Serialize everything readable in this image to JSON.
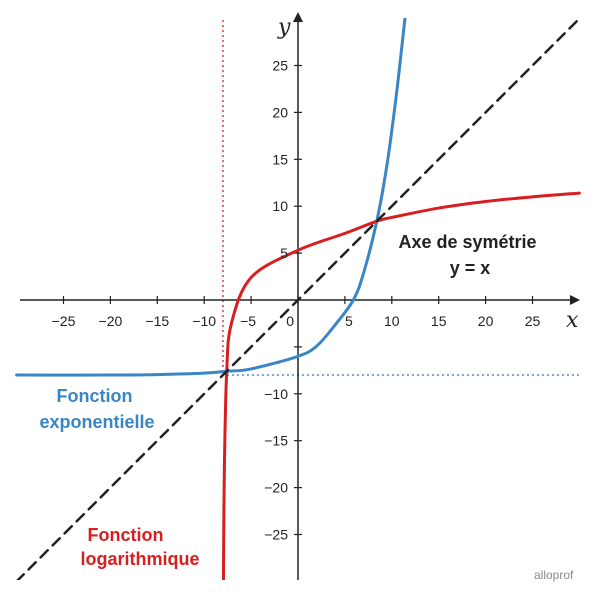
{
  "chart_data": {
    "type": "line",
    "title": "",
    "xlabel": "x",
    "ylabel": "y",
    "xlim": [
      -30,
      30
    ],
    "ylim": [
      -30,
      30
    ],
    "x_ticks": [
      "−25",
      "−20",
      "−15",
      "−10",
      "−5",
      "0",
      "5",
      "10",
      "15",
      "20",
      "25"
    ],
    "y_ticks": [
      "25",
      "20",
      "15",
      "10",
      "5",
      "−10",
      "−15",
      "−20",
      "−25"
    ],
    "grid": false,
    "series": [
      {
        "name": "Fonction exponentielle",
        "color": "#3a85c6",
        "points": [
          [
            -30,
            -8.0
          ],
          [
            -20,
            -8.0
          ],
          [
            -15,
            -7.95
          ],
          [
            -10,
            -7.8
          ],
          [
            -7.6,
            -7.6
          ],
          [
            -5,
            -7.35
          ],
          [
            0,
            -6.0
          ],
          [
            2,
            -4.9
          ],
          [
            4,
            -2.6
          ],
          [
            5.9,
            0
          ],
          [
            7,
            2.9
          ],
          [
            8.4,
            8.4
          ],
          [
            9.5,
            14.5
          ],
          [
            10.5,
            22.0
          ],
          [
            11.4,
            30
          ]
        ]
      },
      {
        "name": "Fonction logarithmique",
        "color": "#d81e1e",
        "points": [
          [
            -7.95,
            -30
          ],
          [
            -7.85,
            -18
          ],
          [
            -7.6,
            -7.6
          ],
          [
            -7.1,
            -2.5
          ],
          [
            -5,
            2.4
          ],
          [
            0,
            5.3
          ],
          [
            5,
            7.1
          ],
          [
            8.4,
            8.4
          ],
          [
            10,
            8.8
          ],
          [
            15,
            9.8
          ],
          [
            20,
            10.5
          ],
          [
            25,
            11.0
          ],
          [
            30,
            11.4
          ]
        ]
      },
      {
        "name": "Axe de symétrie",
        "color": "#222222",
        "points": [
          [
            -30,
            -30
          ],
          [
            30,
            30
          ]
        ]
      }
    ],
    "asymptotes": [
      {
        "orientation": "horizontal",
        "value": -8,
        "color": "#3a85c6"
      },
      {
        "orientation": "vertical",
        "value": -8,
        "color": "#d81e1e"
      }
    ],
    "annotations": {
      "exponential": [
        "Fonction",
        "exponentielle"
      ],
      "logarithmic": [
        "Fonction",
        "logarithmique"
      ],
      "symmetry": [
        "Axe de symétrie",
        "y = x"
      ]
    },
    "watermark": "alloprof"
  }
}
